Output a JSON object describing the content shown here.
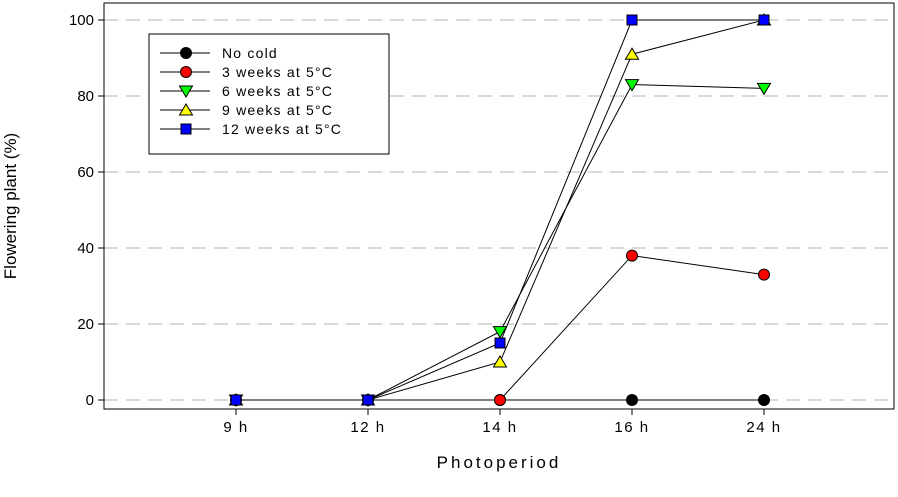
{
  "chart_data": {
    "type": "line",
    "xlabel": "Photoperiod",
    "ylabel": "Flowering plant (%)",
    "categories": [
      "9 h",
      "12 h",
      "14 h",
      "16 h",
      "24 h"
    ],
    "ylim": [
      0,
      100
    ],
    "yticks": [
      0,
      20,
      40,
      60,
      80,
      100
    ],
    "grid": "horizontal dashed",
    "legend_position": "top-left",
    "series": [
      {
        "name": "No cold",
        "marker": "circle",
        "color": "#000000",
        "values": [
          0,
          0,
          0,
          0,
          0
        ]
      },
      {
        "name": "3 weeks at 5°C",
        "marker": "circle",
        "color": "#ff0000",
        "values": [
          0,
          0,
          0,
          38,
          33
        ]
      },
      {
        "name": "6 weeks at 5°C",
        "marker": "triangle-down",
        "color": "#00ff00",
        "values": [
          0,
          0,
          18,
          83,
          82
        ]
      },
      {
        "name": "9 weeks at 5°C",
        "marker": "triangle-up",
        "color": "#ffff00",
        "values": [
          0,
          0,
          10,
          91,
          100
        ]
      },
      {
        "name": "12 weeks at 5°C",
        "marker": "square",
        "color": "#0000ff",
        "values": [
          0,
          0,
          15,
          100,
          100
        ]
      }
    ]
  }
}
